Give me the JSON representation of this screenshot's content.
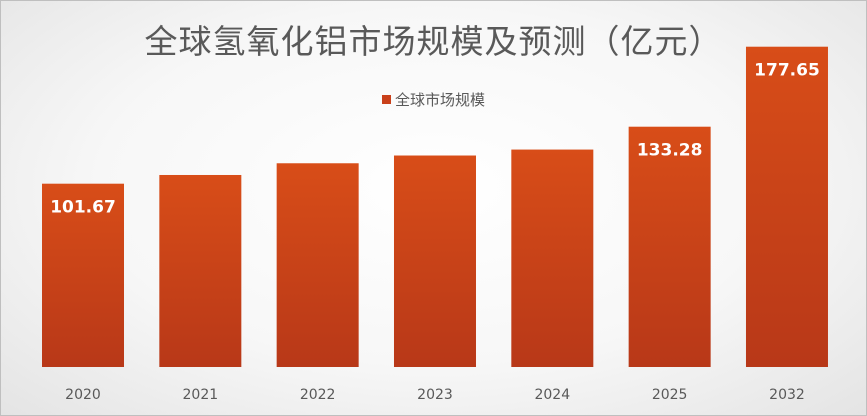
{
  "chart_data": {
    "type": "bar",
    "title": "全球氢氧化铝市场规模及预测（亿元）",
    "legend": [
      "全球市场规模"
    ],
    "legend_position": "top",
    "categories": [
      "2020",
      "2021",
      "2022",
      "2023",
      "2024",
      "2025",
      "2032"
    ],
    "series": [
      {
        "name": "全球市场规模",
        "values": [
          101.67,
          106.5,
          113.0,
          117.3,
          120.6,
          133.28,
          177.65
        ],
        "data_labels": [
          "101.67",
          "",
          "",
          "",
          "",
          "133.28",
          "177.65"
        ]
      }
    ],
    "ylim": [
      0,
      203
    ],
    "grid": false,
    "colors": {
      "bar_top": "#d84d18",
      "bar_bottom": "#b83818",
      "label": "#ffffff"
    }
  }
}
